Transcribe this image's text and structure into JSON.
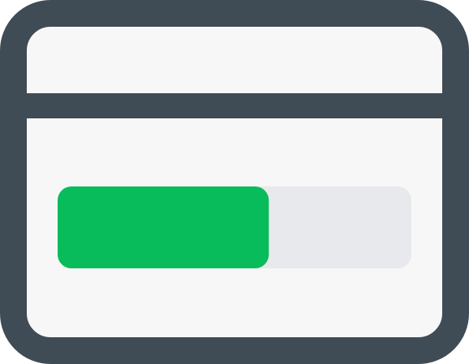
{
  "icon": {
    "name": "progress-window-icon",
    "progress_fraction": 0.597,
    "colors": {
      "frame": "#3f4b55",
      "window_fill": "#f7f7f7",
      "track": "#e7e9ec",
      "fill": "#09bc5b",
      "background": "#ffffff"
    }
  }
}
